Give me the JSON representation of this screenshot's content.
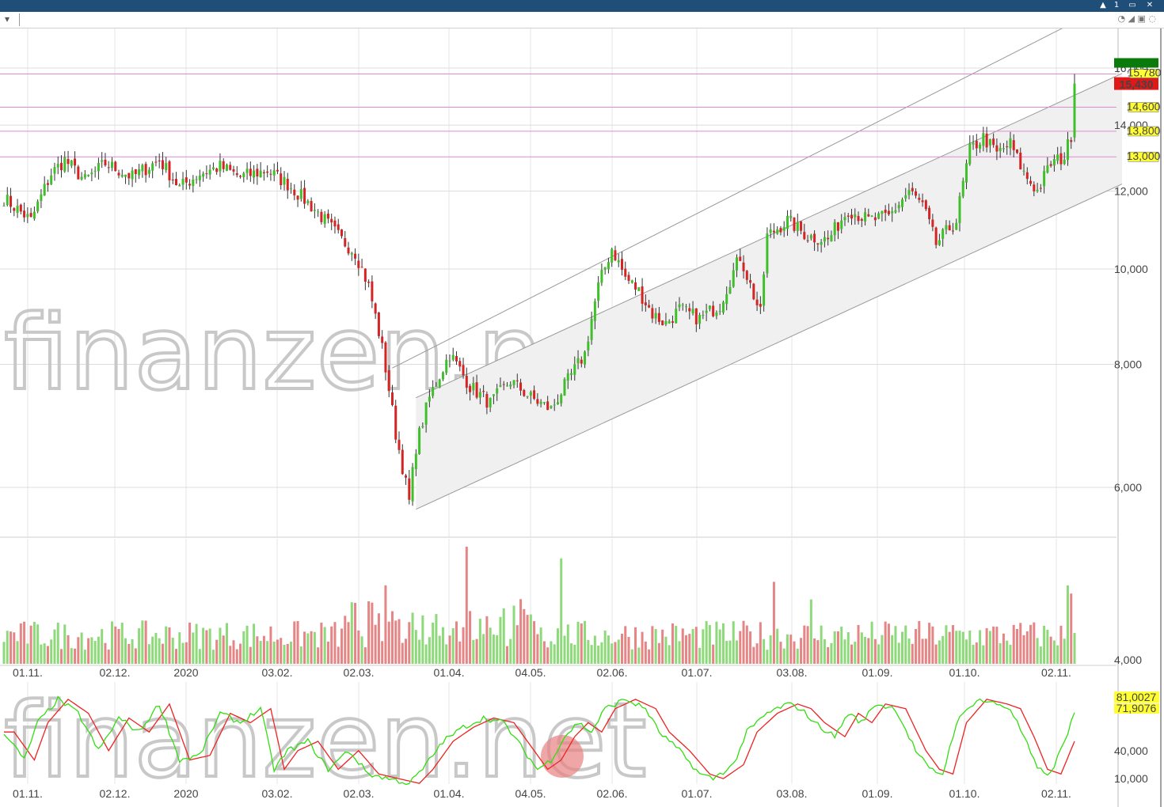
{
  "window": {
    "controls": [
      "▲",
      "1",
      "▭",
      "✕"
    ],
    "toolbar_icons": "◔ ◢ ▣ ◌"
  },
  "watermark": {
    "text": "finanzen.net"
  },
  "colors": {
    "up": "#3fbf2a",
    "down": "#d42424",
    "vol_up": "#8ed97a",
    "vol_down": "#e58585",
    "channel": "#f0f0f0",
    "resistance": "#e08ad0",
    "stoch_k": "#33dd11",
    "stoch_d": "#ee2222"
  },
  "chart_data": {
    "type": "candlestick",
    "x_labels": [
      "01.11.",
      "02.12.",
      "2020",
      "03.02.",
      "02.03.",
      "01.04.",
      "04.05.",
      "02.06.",
      "01.07.",
      "03.08.",
      "01.09.",
      "01.10.",
      "02.11."
    ],
    "price_axis": {
      "ticks": [
        "16,000",
        "14,000",
        "12,000",
        "10,000",
        "8,000",
        "6,000",
        "4,000"
      ],
      "tick_values": [
        16000,
        14000,
        12000,
        10000,
        8000,
        6000,
        4000
      ],
      "scale": "log"
    },
    "price_path": [
      [
        0,
        11800
      ],
      [
        8,
        11200
      ],
      [
        14,
        12500
      ],
      [
        18,
        12900
      ],
      [
        24,
        12300
      ],
      [
        30,
        12800
      ],
      [
        38,
        12400
      ],
      [
        46,
        12900
      ],
      [
        52,
        12100
      ],
      [
        58,
        12500
      ],
      [
        64,
        12700
      ],
      [
        70,
        12400
      ],
      [
        78,
        12600
      ],
      [
        84,
        12200
      ],
      [
        92,
        11500
      ],
      [
        100,
        10700
      ],
      [
        104,
        10400
      ],
      [
        108,
        9600
      ],
      [
        112,
        8300
      ],
      [
        116,
        6800
      ],
      [
        120,
        5800
      ],
      [
        122,
        6600
      ],
      [
        126,
        7400
      ],
      [
        132,
        8200
      ],
      [
        138,
        7600
      ],
      [
        144,
        7300
      ],
      [
        150,
        7700
      ],
      [
        156,
        7400
      ],
      [
        162,
        7200
      ],
      [
        166,
        7600
      ],
      [
        172,
        8200
      ],
      [
        176,
        9600
      ],
      [
        180,
        10500
      ],
      [
        184,
        9800
      ],
      [
        188,
        9500
      ],
      [
        192,
        9000
      ],
      [
        196,
        8800
      ],
      [
        200,
        9100
      ],
      [
        206,
        8900
      ],
      [
        212,
        9200
      ],
      [
        218,
        10300
      ],
      [
        222,
        9400
      ],
      [
        224,
        9000
      ],
      [
        226,
        10800
      ],
      [
        232,
        11200
      ],
      [
        238,
        10800
      ],
      [
        244,
        10700
      ],
      [
        250,
        11500
      ],
      [
        256,
        11200
      ],
      [
        262,
        11300
      ],
      [
        268,
        12000
      ],
      [
        272,
        11600
      ],
      [
        276,
        10600
      ],
      [
        282,
        11200
      ],
      [
        286,
        13200
      ],
      [
        290,
        13600
      ],
      [
        294,
        13100
      ],
      [
        298,
        13400
      ],
      [
        302,
        12500
      ],
      [
        306,
        12000
      ],
      [
        310,
        12800
      ],
      [
        314,
        13000
      ],
      [
        316,
        13700
      ],
      [
        317,
        15430
      ]
    ],
    "ohlc_last": {
      "open": 13600,
      "high": 15780,
      "close": 15430
    },
    "price_labels": [
      {
        "text": "15,430",
        "value": 15430,
        "kind": "close"
      },
      {
        "text": "15,780",
        "value": 15780,
        "kind": "high"
      },
      {
        "text": "14,600",
        "value": 14600,
        "kind": "level"
      },
      {
        "text": "13,800",
        "value": 13800,
        "kind": "level"
      },
      {
        "text": "13,000",
        "value": 13000,
        "kind": "level"
      }
    ],
    "horizontal_levels": [
      15780,
      14600,
      13800,
      13000
    ],
    "channel": {
      "start_index": 122,
      "end_index": 317,
      "lower_start": 5700,
      "lower_end": 12200,
      "mid_start": 7400,
      "mid_end": 15800,
      "upper_start": 8200,
      "upper_end": 18500
    },
    "volume": {
      "spikes": [
        [
          147,
          1.0
        ],
        [
          176,
          0.9
        ],
        [
          121,
          0.67
        ],
        [
          244,
          0.7
        ],
        [
          337,
          0.67
        ],
        [
          338,
          0.6
        ],
        [
          255,
          0.55
        ]
      ]
    },
    "stochastic": {
      "labels": [
        "81,0027",
        "71,9076"
      ],
      "values": [
        81.0027,
        71.9076
      ],
      "ticks": [
        "40,000",
        "10,000"
      ],
      "tick_values": [
        40,
        10
      ],
      "path": [
        [
          0,
          60
        ],
        [
          6,
          30
        ],
        [
          10,
          70
        ],
        [
          16,
          95
        ],
        [
          22,
          80
        ],
        [
          28,
          40
        ],
        [
          34,
          75
        ],
        [
          40,
          60
        ],
        [
          46,
          90
        ],
        [
          52,
          30
        ],
        [
          58,
          35
        ],
        [
          64,
          80
        ],
        [
          70,
          70
        ],
        [
          76,
          85
        ],
        [
          80,
          20
        ],
        [
          84,
          40
        ],
        [
          90,
          50
        ],
        [
          96,
          20
        ],
        [
          102,
          40
        ],
        [
          108,
          15
        ],
        [
          114,
          10
        ],
        [
          120,
          5
        ],
        [
          124,
          20
        ],
        [
          130,
          50
        ],
        [
          136,
          65
        ],
        [
          142,
          75
        ],
        [
          148,
          70
        ],
        [
          154,
          40
        ],
        [
          158,
          20
        ],
        [
          162,
          30
        ],
        [
          166,
          55
        ],
        [
          170,
          70
        ],
        [
          174,
          60
        ],
        [
          178,
          85
        ],
        [
          184,
          95
        ],
        [
          190,
          85
        ],
        [
          194,
          60
        ],
        [
          200,
          40
        ],
        [
          206,
          15
        ],
        [
          210,
          10
        ],
        [
          216,
          25
        ],
        [
          220,
          60
        ],
        [
          226,
          80
        ],
        [
          232,
          90
        ],
        [
          236,
          85
        ],
        [
          240,
          70
        ],
        [
          246,
          55
        ],
        [
          250,
          80
        ],
        [
          254,
          70
        ],
        [
          258,
          90
        ],
        [
          264,
          85
        ],
        [
          270,
          40
        ],
        [
          274,
          20
        ],
        [
          278,
          15
        ],
        [
          282,
          70
        ],
        [
          288,
          95
        ],
        [
          294,
          90
        ],
        [
          298,
          85
        ],
        [
          302,
          55
        ],
        [
          306,
          20
        ],
        [
          310,
          15
        ],
        [
          314,
          50
        ],
        [
          317,
          80
        ]
      ]
    }
  }
}
